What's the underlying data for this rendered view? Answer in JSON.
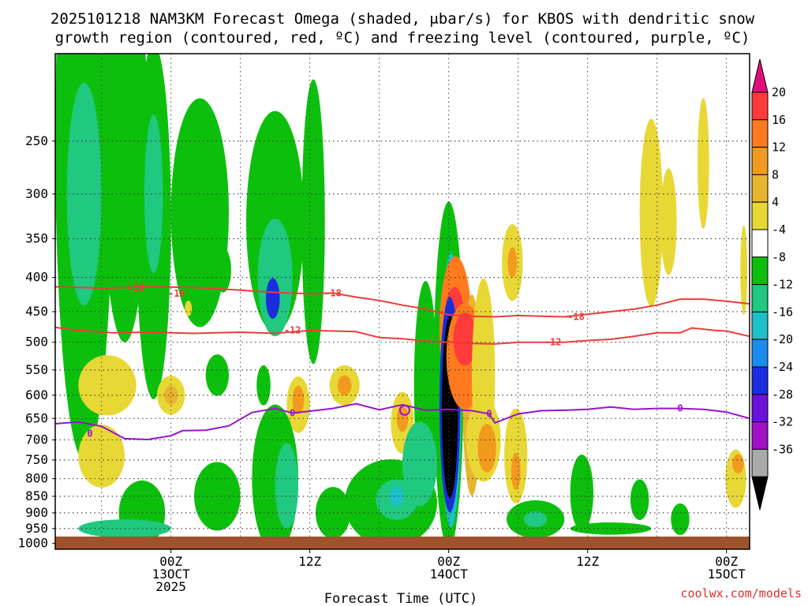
{
  "chart_data": {
    "type": "heatmap",
    "title_line1": "2025101218 NAM3KM Forecast Omega (shaded, μbar/s) for KBOS with dendritic snow",
    "title_line2": "growth region (contoured, red, ºC) and freezing level (contoured, purple, ºC)",
    "xlabel": "Forecast Time (UTC)",
    "credit": "coolwx.com/models",
    "x_range_hours": [
      -10,
      50
    ],
    "y_range_hPa": [
      185,
      1020
    ],
    "y_ticks": [
      250,
      300,
      350,
      400,
      450,
      500,
      550,
      600,
      650,
      700,
      750,
      800,
      850,
      900,
      950,
      1000
    ],
    "y_tick_labels": [
      "250",
      "300",
      "350",
      "400",
      "450",
      "500",
      "550",
      "600",
      "650",
      "700",
      "750",
      "800",
      "850",
      "900",
      "950",
      "1000"
    ],
    "x_ticks": [
      {
        "hour": 0,
        "lines": [
          "00Z",
          "13OCT",
          "2025"
        ]
      },
      {
        "hour": 12,
        "lines": [
          "12Z"
        ]
      },
      {
        "hour": 24,
        "lines": [
          "00Z",
          "14OCT"
        ]
      },
      {
        "hour": 36,
        "lines": [
          "12Z"
        ]
      },
      {
        "hour": 48,
        "lines": [
          "00Z",
          "15OCT"
        ]
      }
    ],
    "colorbar": {
      "labels": [
        "20",
        "16",
        "12",
        "8",
        "4",
        "-4",
        "-8",
        "-12",
        "-16",
        "-20",
        "-24",
        "-28",
        "-32",
        "-36"
      ],
      "colors": [
        "#ff3b3b",
        "#ff7a1f",
        "#f29a1e",
        "#e8b52e",
        "#e8d836",
        "#ffffff",
        "#0dbf0d",
        "#20c880",
        "#1ec0c8",
        "#1a8cf0",
        "#1a2ee0",
        "#6a12d8",
        "#a010c8",
        "#aaaaaa"
      ],
      "top_arrow": "#e0107a",
      "bottom_arrow": "#000000"
    },
    "series": [
      {
        "name": "-18 C isotherm",
        "color": "#ee3b3b",
        "label": "-18",
        "label_points": [
          [
            -3,
            415
          ],
          [
            0.5,
            423
          ],
          [
            14,
            422
          ],
          [
            35,
            458
          ]
        ],
        "points": [
          [
            -10,
            413
          ],
          [
            -6,
            415
          ],
          [
            -2,
            413
          ],
          [
            2,
            414
          ],
          [
            6,
            418
          ],
          [
            8,
            420
          ],
          [
            10,
            422
          ],
          [
            12,
            423
          ],
          [
            14,
            422
          ],
          [
            16,
            428
          ],
          [
            18,
            433
          ],
          [
            20,
            440
          ],
          [
            22,
            446
          ],
          [
            24,
            455
          ],
          [
            26,
            457
          ],
          [
            28,
            458
          ],
          [
            30,
            456
          ],
          [
            32,
            457
          ],
          [
            34,
            458
          ],
          [
            36,
            454
          ],
          [
            38,
            450
          ],
          [
            40,
            446
          ],
          [
            42,
            440
          ],
          [
            44,
            431
          ],
          [
            46,
            431
          ],
          [
            48,
            434
          ],
          [
            50,
            438
          ]
        ]
      },
      {
        "name": "-12 C isotherm",
        "color": "#ee3b3b",
        "label": "-12",
        "label_points": [
          [
            10.5,
            480
          ],
          [
            33,
            500
          ]
        ],
        "points": [
          [
            -10,
            475
          ],
          [
            -8,
            480
          ],
          [
            -5,
            484
          ],
          [
            -2,
            483
          ],
          [
            2,
            485
          ],
          [
            6,
            483
          ],
          [
            9,
            485
          ],
          [
            12,
            480
          ],
          [
            16,
            482
          ],
          [
            18,
            492
          ],
          [
            20,
            494
          ],
          [
            22,
            498
          ],
          [
            24,
            500
          ],
          [
            26,
            502
          ],
          [
            28,
            503
          ],
          [
            30,
            500
          ],
          [
            32,
            500
          ],
          [
            34,
            500
          ],
          [
            36,
            497
          ],
          [
            38,
            495
          ],
          [
            40,
            490
          ],
          [
            42,
            484
          ],
          [
            44,
            484
          ],
          [
            45,
            476
          ],
          [
            47,
            480
          ],
          [
            48,
            481
          ],
          [
            50,
            490
          ]
        ]
      },
      {
        "name": "0 C freezing level",
        "color": "#9a12d0",
        "label": "0",
        "label_points": [
          [
            -7,
            685
          ],
          [
            10.5,
            638
          ],
          [
            27.5,
            640
          ],
          [
            44,
            628
          ]
        ],
        "points": [
          [
            -10,
            662
          ],
          [
            -8,
            658
          ],
          [
            -6,
            668
          ],
          [
            -4,
            697
          ],
          [
            -2,
            699
          ],
          [
            0,
            690
          ],
          [
            1,
            678
          ],
          [
            3,
            677
          ],
          [
            5,
            667
          ],
          [
            7,
            637
          ],
          [
            9,
            628
          ],
          [
            10.5,
            638
          ],
          [
            12,
            634
          ],
          [
            14,
            628
          ],
          [
            16,
            618
          ],
          [
            18,
            631
          ],
          [
            20,
            620
          ],
          [
            22,
            632
          ],
          [
            24,
            630
          ],
          [
            26,
            633
          ],
          [
            27.5,
            640
          ],
          [
            28,
            660
          ],
          [
            30,
            640
          ],
          [
            32,
            633
          ],
          [
            34,
            632
          ],
          [
            36,
            630
          ],
          [
            38,
            625
          ],
          [
            40,
            630
          ],
          [
            42,
            628
          ],
          [
            44,
            628
          ],
          [
            46,
            630
          ],
          [
            48,
            636
          ],
          [
            50,
            650
          ]
        ]
      }
    ],
    "shaded_regions": [
      {
        "t": -7.5,
        "p": 250,
        "rt": 2.5,
        "rp": 200,
        "color": "#0dbf0d"
      },
      {
        "t": -7.5,
        "p": 300,
        "rt": 1.5,
        "rp": 110,
        "color": "#20c880"
      },
      {
        "t": -4,
        "p": 250,
        "rt": 2,
        "rp": 150,
        "color": "#0dbf0d"
      },
      {
        "t": -1.5,
        "p": 330,
        "rt": 1.5,
        "rp": 180,
        "color": "#0dbf0d"
      },
      {
        "t": -1.5,
        "p": 300,
        "rt": 0.8,
        "rp": 80,
        "color": "#20c880"
      },
      {
        "t": 2.5,
        "p": 320,
        "rt": 2.5,
        "rp": 120,
        "color": "#0dbf0d"
      },
      {
        "t": 9,
        "p": 330,
        "rt": 2.5,
        "rp": 120,
        "color": "#0dbf0d"
      },
      {
        "t": 9,
        "p": 400,
        "rt": 1.5,
        "rp": 80,
        "color": "#20c880"
      },
      {
        "t": 8.8,
        "p": 430,
        "rt": 0.6,
        "rp": 30,
        "color": "#1a2ee0"
      },
      {
        "t": 12.3,
        "p": 330,
        "rt": 1,
        "rp": 150,
        "color": "#0dbf0d"
      },
      {
        "t": 4.5,
        "p": 390,
        "rt": 0.7,
        "rp": 30,
        "color": "#0dbf0d"
      },
      {
        "t": 1.5,
        "p": 445,
        "rt": 0.3,
        "rp": 12,
        "color": "#e8d836"
      },
      {
        "t": 22,
        "p": 580,
        "rt": 1,
        "rp": 200,
        "color": "#0dbf0d"
      },
      {
        "t": 24,
        "p": 560,
        "rt": 1.3,
        "rp": 300,
        "color": "#0dbf0d"
      },
      {
        "t": 24.2,
        "p": 590,
        "rt": 0.9,
        "rp": 260,
        "color": "#1ec0c8"
      },
      {
        "t": 24.6,
        "p": 480,
        "rt": 1.4,
        "rp": 120,
        "color": "#ff7a1f"
      },
      {
        "t": 24.5,
        "p": 470,
        "rt": 0.9,
        "rp": 60,
        "color": "#ff3b3b"
      },
      {
        "t": 26,
        "p": 600,
        "rt": 0.8,
        "rp": 200,
        "color": "#e8b52e"
      },
      {
        "t": 24.1,
        "p": 620,
        "rt": 0.9,
        "rp": 220,
        "color": "#1a2ee0"
      },
      {
        "t": 24.1,
        "p": 625,
        "rt": 0.7,
        "rp": 190,
        "color": "#000000"
      },
      {
        "t": 25.4,
        "p": 525,
        "rt": 1.6,
        "rp": 95,
        "color": "#ff7a1f"
      },
      {
        "t": 25.4,
        "p": 495,
        "rt": 1,
        "rp": 45,
        "color": "#ff3b3b"
      },
      {
        "t": 27,
        "p": 560,
        "rt": 1,
        "rp": 180,
        "color": "#e8d836"
      },
      {
        "t": 27,
        "p": 700,
        "rt": 1.5,
        "rp": 100,
        "color": "#e8d836"
      },
      {
        "t": 27.3,
        "p": 720,
        "rt": 0.8,
        "rp": 60,
        "color": "#f29a1e"
      },
      {
        "t": 29.5,
        "p": 380,
        "rt": 0.9,
        "rp": 50,
        "color": "#e8d836"
      },
      {
        "t": 29.5,
        "p": 380,
        "rt": 0.4,
        "rp": 20,
        "color": "#f29a1e"
      },
      {
        "t": 29.8,
        "p": 740,
        "rt": 1,
        "rp": 120,
        "color": "#e8d836"
      },
      {
        "t": 29.8,
        "p": 780,
        "rt": 0.4,
        "rp": 50,
        "color": "#f29a1e"
      },
      {
        "t": 20,
        "p": 660,
        "rt": 1,
        "rp": 70,
        "color": "#e8d836"
      },
      {
        "t": 20,
        "p": 650,
        "rt": 0.5,
        "rp": 30,
        "color": "#f29a1e"
      },
      {
        "t": 11,
        "p": 620,
        "rt": 1,
        "rp": 60,
        "color": "#e8d836"
      },
      {
        "t": 11,
        "p": 610,
        "rt": 0.5,
        "rp": 30,
        "color": "#f29a1e"
      },
      {
        "t": 15,
        "p": 580,
        "rt": 1.3,
        "rp": 40,
        "color": "#e8d836"
      },
      {
        "t": 15,
        "p": 580,
        "rt": 0.6,
        "rp": 20,
        "color": "#f29a1e"
      },
      {
        "t": -5.5,
        "p": 580,
        "rt": 2.5,
        "rp": 60,
        "color": "#e8d836"
      },
      {
        "t": -6,
        "p": 740,
        "rt": 2,
        "rp": 80,
        "color": "#e8d836"
      },
      {
        "t": 0,
        "p": 600,
        "rt": 1.2,
        "rp": 40,
        "color": "#e8d836"
      },
      {
        "t": 0,
        "p": 600,
        "rt": 0.6,
        "rp": 20,
        "color": "#e8b52e"
      },
      {
        "t": 4,
        "p": 560,
        "rt": 1,
        "rp": 40,
        "color": "#0dbf0d"
      },
      {
        "t": 8,
        "p": 580,
        "rt": 0.6,
        "rp": 40,
        "color": "#0dbf0d"
      },
      {
        "t": -2.5,
        "p": 900,
        "rt": 2,
        "rp": 100,
        "color": "#0dbf0d"
      },
      {
        "t": -4,
        "p": 950,
        "rt": 4,
        "rp": 30,
        "color": "#20c880"
      },
      {
        "t": 4,
        "p": 850,
        "rt": 2,
        "rp": 100,
        "color": "#0dbf0d"
      },
      {
        "t": 9,
        "p": 800,
        "rt": 2,
        "rp": 200,
        "color": "#0dbf0d"
      },
      {
        "t": 10,
        "p": 820,
        "rt": 1,
        "rp": 120,
        "color": "#20c880"
      },
      {
        "t": 14,
        "p": 900,
        "rt": 1.5,
        "rp": 80,
        "color": "#0dbf0d"
      },
      {
        "t": 19,
        "p": 870,
        "rt": 4,
        "rp": 130,
        "color": "#0dbf0d"
      },
      {
        "t": 19.5,
        "p": 860,
        "rt": 1.8,
        "rp": 60,
        "color": "#20c880"
      },
      {
        "t": 19.5,
        "p": 850,
        "rt": 0.6,
        "rp": 30,
        "color": "#1ec0c8"
      },
      {
        "t": 21.5,
        "p": 760,
        "rt": 1.5,
        "rp": 110,
        "color": "#20c880"
      },
      {
        "t": 31.5,
        "p": 920,
        "rt": 2.5,
        "rp": 60,
        "color": "#0dbf0d"
      },
      {
        "t": 31.5,
        "p": 920,
        "rt": 1,
        "rp": 25,
        "color": "#20c880"
      },
      {
        "t": 35.5,
        "p": 840,
        "rt": 1,
        "rp": 110,
        "color": "#0dbf0d"
      },
      {
        "t": 40.5,
        "p": 860,
        "rt": 0.8,
        "rp": 60,
        "color": "#0dbf0d"
      },
      {
        "t": 44,
        "p": 920,
        "rt": 0.8,
        "rp": 50,
        "color": "#0dbf0d"
      },
      {
        "t": 37.5,
        "p": 950,
        "rt": 1.5,
        "rp": 20,
        "color": "#0dbf0d"
      },
      {
        "t": 46,
        "p": 270,
        "rt": 0.5,
        "rp": 60,
        "color": "#e8d836"
      },
      {
        "t": 41.5,
        "p": 320,
        "rt": 1,
        "rp": 100,
        "color": "#e8d836"
      },
      {
        "t": 43,
        "p": 330,
        "rt": 0.7,
        "rp": 60,
        "color": "#e8d836"
      },
      {
        "t": 48.8,
        "p": 800,
        "rt": 0.9,
        "rp": 80,
        "color": "#e8d836"
      },
      {
        "t": 49,
        "p": 760,
        "rt": 0.5,
        "rp": 25,
        "color": "#f29a1e"
      },
      {
        "t": 49.5,
        "p": 390,
        "rt": 0.3,
        "rp": 60,
        "color": "#e8d836"
      },
      {
        "t": 38,
        "p": 950,
        "rt": 3.5,
        "rp": 20,
        "color": "#0dbf0d"
      }
    ]
  }
}
